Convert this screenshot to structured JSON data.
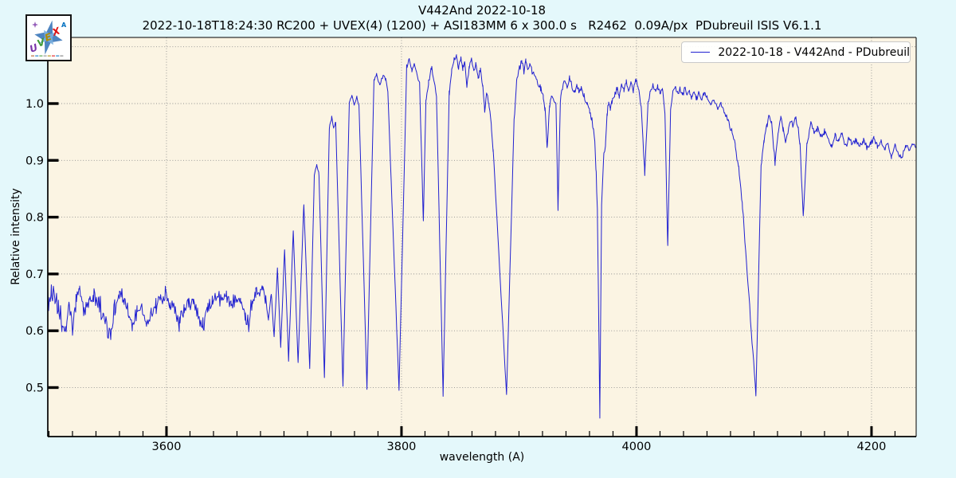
{
  "header": {
    "title": "V442And 2022-10-18",
    "subtitle": "2022-10-18T18:24:30 RC200 + UVEX(4) (1200) + ASI183MM 6 x 300.0 s   R2462  0.09A/px  PDubreuil ISIS V6.1.1"
  },
  "legend": {
    "label": "2022-10-18 - V442And - PDubreuil"
  },
  "logo": {
    "letters": [
      "U",
      "V",
      "E",
      "X"
    ],
    "accent_letter": "A",
    "colors": {
      "U": "#7a35a8",
      "V": "#3f9b35",
      "E": "#b08a00",
      "X": "#e01010",
      "A": "#0070c0",
      "star": "#2f6eb5",
      "star2": "#79aede"
    }
  },
  "axes": {
    "x_label": "wavelength (A)",
    "y_label": "Relative intensity",
    "x_ticks": [
      3600,
      3800,
      4000,
      4200
    ],
    "x_minor_step": 20,
    "y_ticks": [
      0.5,
      0.6,
      0.7,
      0.8,
      0.9,
      1.0
    ],
    "y_grid": [
      0.5,
      0.6,
      0.7,
      0.8,
      0.9,
      1.0,
      1.1
    ]
  },
  "colors": {
    "figure_bg": "#e4f8fb",
    "plot_bg": "#fbf4e3",
    "grid": "#8f8f8f",
    "frame": "#000000",
    "line": "#2020d0"
  },
  "chart_data": {
    "type": "line",
    "title": "V442And 2022-10-18",
    "xlabel": "wavelength (A)",
    "ylabel": "Relative intensity",
    "xlim": [
      3499,
      4238
    ],
    "ylim": [
      0.4137,
      1.1164
    ],
    "grid": true,
    "legend_position": "upper right",
    "series": [
      {
        "name": "2022-10-18 - V442And - PDubreuil",
        "color": "#2020d0",
        "seed": 1234,
        "noise_regions": [
          [
            3499,
            3560,
            0.024
          ],
          [
            3560,
            3686,
            0.018
          ],
          [
            3686,
            3800,
            0.004
          ],
          [
            3800,
            3880,
            0.006
          ],
          [
            3880,
            3896,
            0.003
          ],
          [
            3896,
            4238,
            0.007
          ]
        ],
        "anchors": [
          [
            3499,
            0.652
          ],
          [
            3502,
            0.668
          ],
          [
            3505,
            0.652
          ],
          [
            3508,
            0.638
          ],
          [
            3511,
            0.613
          ],
          [
            3514,
            0.6
          ],
          [
            3517,
            0.64
          ],
          [
            3520,
            0.603
          ],
          [
            3523,
            0.65
          ],
          [
            3526,
            0.668
          ],
          [
            3530,
            0.638
          ],
          [
            3534,
            0.65
          ],
          [
            3538,
            0.662
          ],
          [
            3542,
            0.653
          ],
          [
            3546,
            0.628
          ],
          [
            3550,
            0.6
          ],
          [
            3553,
            0.594
          ],
          [
            3556,
            0.642
          ],
          [
            3560,
            0.667
          ],
          [
            3564,
            0.652
          ],
          [
            3568,
            0.623
          ],
          [
            3571,
            0.61
          ],
          [
            3575,
            0.632
          ],
          [
            3579,
            0.643
          ],
          [
            3583,
            0.607
          ],
          [
            3587,
            0.633
          ],
          [
            3591,
            0.643
          ],
          [
            3595,
            0.656
          ],
          [
            3599,
            0.668
          ],
          [
            3603,
            0.648
          ],
          [
            3607,
            0.636
          ],
          [
            3611,
            0.613
          ],
          [
            3615,
            0.637
          ],
          [
            3619,
            0.646
          ],
          [
            3623,
            0.649
          ],
          [
            3627,
            0.633
          ],
          [
            3631,
            0.607
          ],
          [
            3635,
            0.641
          ],
          [
            3639,
            0.651
          ],
          [
            3643,
            0.663
          ],
          [
            3647,
            0.653
          ],
          [
            3651,
            0.658
          ],
          [
            3655,
            0.648
          ],
          [
            3659,
            0.665
          ],
          [
            3663,
            0.657
          ],
          [
            3667,
            0.629
          ],
          [
            3670,
            0.608
          ],
          [
            3673,
            0.656
          ],
          [
            3676,
            0.666
          ],
          [
            3679,
            0.673
          ],
          [
            3682,
            0.681
          ],
          [
            3684.5,
            0.657
          ],
          [
            3686.8,
            0.62
          ],
          [
            3689.2,
            0.665
          ],
          [
            3691.6,
            0.588
          ],
          [
            3694.4,
            0.71
          ],
          [
            3697.2,
            0.572
          ],
          [
            3700.5,
            0.745
          ],
          [
            3703.9,
            0.549
          ],
          [
            3707.9,
            0.777
          ],
          [
            3712.0,
            0.544
          ],
          [
            3716.9,
            0.825
          ],
          [
            3721.9,
            0.533
          ],
          [
            3725.8,
            0.872
          ],
          [
            3727.9,
            0.893
          ],
          [
            3729.8,
            0.874
          ],
          [
            3734.4,
            0.514
          ],
          [
            3738.6,
            0.956
          ],
          [
            3740.6,
            0.975
          ],
          [
            3742.3,
            0.958
          ],
          [
            3744.0,
            0.968
          ],
          [
            3750.2,
            0.502
          ],
          [
            3755.6,
            1.002
          ],
          [
            3757.8,
            1.015
          ],
          [
            3759.8,
            0.996
          ],
          [
            3762.0,
            1.012
          ],
          [
            3763.8,
            0.998
          ],
          [
            3770.6,
            0.5
          ],
          [
            3776.6,
            1.042
          ],
          [
            3778.8,
            1.05
          ],
          [
            3781.4,
            1.033
          ],
          [
            3784.6,
            1.052
          ],
          [
            3786.6,
            1.042
          ],
          [
            3788.4,
            1.02
          ],
          [
            3797.9,
            0.495
          ],
          [
            3804.4,
            1.065
          ],
          [
            3806.6,
            1.078
          ],
          [
            3808.8,
            1.06
          ],
          [
            3810.8,
            1.072
          ],
          [
            3813.0,
            1.055
          ],
          [
            3815.4,
            1.035
          ],
          [
            3818.6,
            0.792
          ],
          [
            3820.8,
            1.005
          ],
          [
            3823.0,
            1.035
          ],
          [
            3825.5,
            1.065
          ],
          [
            3827.6,
            1.042
          ],
          [
            3829.8,
            1.012
          ],
          [
            3835.4,
            0.486
          ],
          [
            3840.6,
            1.018
          ],
          [
            3842.6,
            1.055
          ],
          [
            3844.6,
            1.075
          ],
          [
            3846.8,
            1.085
          ],
          [
            3848.6,
            1.062
          ],
          [
            3850.6,
            1.08
          ],
          [
            3852.2,
            1.062
          ],
          [
            3853.8,
            1.073
          ],
          [
            3855.6,
            1.028
          ],
          [
            3857.6,
            1.062
          ],
          [
            3859.6,
            1.076
          ],
          [
            3861.6,
            1.056
          ],
          [
            3863.2,
            1.07
          ],
          [
            3865.2,
            1.045
          ],
          [
            3867.2,
            1.058
          ],
          [
            3869.2,
            1.032
          ],
          [
            3870.8,
            0.985
          ],
          [
            3872.4,
            1.02
          ],
          [
            3874.4,
            1.0
          ],
          [
            3876.4,
            0.962
          ],
          [
            3878.0,
            0.92
          ],
          [
            3889.4,
            0.486
          ],
          [
            3895.8,
            0.972
          ],
          [
            3898.0,
            1.04
          ],
          [
            3900.0,
            1.062
          ],
          [
            3902.4,
            1.072
          ],
          [
            3904.2,
            1.056
          ],
          [
            3905.8,
            1.076
          ],
          [
            3907.4,
            1.062
          ],
          [
            3909.0,
            1.072
          ],
          [
            3910.6,
            1.06
          ],
          [
            3912.4,
            1.052
          ],
          [
            3914.4,
            1.046
          ],
          [
            3916.4,
            1.034
          ],
          [
            3918.4,
            1.027
          ],
          [
            3920.6,
            1.012
          ],
          [
            3922.2,
            0.99
          ],
          [
            3923.9,
            0.923
          ],
          [
            3926.0,
            0.996
          ],
          [
            3927.6,
            1.012
          ],
          [
            3929.4,
            1.003
          ],
          [
            3931.4,
            1.0
          ],
          [
            3933.2,
            0.813
          ],
          [
            3935.2,
            1.006
          ],
          [
            3937.0,
            1.028
          ],
          [
            3939.0,
            1.04
          ],
          [
            3941.0,
            1.028
          ],
          [
            3943.0,
            1.044
          ],
          [
            3945.0,
            1.03
          ],
          [
            3947.0,
            1.018
          ],
          [
            3949.0,
            1.035
          ],
          [
            3951.0,
            1.02
          ],
          [
            3953.0,
            1.03
          ],
          [
            3955.4,
            1.012
          ],
          [
            3958.0,
            0.998
          ],
          [
            3960.2,
            0.985
          ],
          [
            3961.8,
            0.976
          ],
          [
            3963.2,
            0.956
          ],
          [
            3964.5,
            0.932
          ],
          [
            3965.7,
            0.875
          ],
          [
            3966.7,
            0.81
          ],
          [
            3967.6,
            0.66
          ],
          [
            3968.8,
            0.451
          ],
          [
            3970.3,
            0.82
          ],
          [
            3972.1,
            0.908
          ],
          [
            3973.7,
            0.93
          ],
          [
            3975.1,
            0.985
          ],
          [
            3976.3,
            1.0
          ],
          [
            3977.7,
            0.99
          ],
          [
            3979.1,
            1.006
          ],
          [
            3981.3,
            1.012
          ],
          [
            3983.3,
            1.027
          ],
          [
            3985.3,
            1.014
          ],
          [
            3987.3,
            1.032
          ],
          [
            3989.3,
            1.021
          ],
          [
            3991.3,
            1.04
          ],
          [
            3993.3,
            1.024
          ],
          [
            3995.3,
            1.037
          ],
          [
            3997.3,
            1.022
          ],
          [
            3999.3,
            1.042
          ],
          [
            4001.4,
            1.027
          ],
          [
            4004.0,
            0.992
          ],
          [
            4007.0,
            0.877
          ],
          [
            4009.8,
            1.0
          ],
          [
            4012.0,
            1.022
          ],
          [
            4014.0,
            1.034
          ],
          [
            4016.0,
            1.021
          ],
          [
            4018.0,
            1.032
          ],
          [
            4020.0,
            1.019
          ],
          [
            4022.0,
            1.03
          ],
          [
            4024.2,
            0.982
          ],
          [
            4026.6,
            0.746
          ],
          [
            4029.0,
            0.99
          ],
          [
            4031.0,
            1.02
          ],
          [
            4033.0,
            1.03
          ],
          [
            4035.0,
            1.017
          ],
          [
            4037.0,
            1.029
          ],
          [
            4039.0,
            1.014
          ],
          [
            4041.0,
            1.026
          ],
          [
            4043.0,
            1.012
          ],
          [
            4045.0,
            1.024
          ],
          [
            4047.0,
            1.01
          ],
          [
            4049.0,
            1.021
          ],
          [
            4051.0,
            1.007
          ],
          [
            4053.0,
            1.019
          ],
          [
            4055.0,
            1.005
          ],
          [
            4057.5,
            1.017
          ],
          [
            4060.0,
            1.013
          ],
          [
            4063.0,
            1.0
          ],
          [
            4066.0,
            1.007
          ],
          [
            4069.0,
            0.992
          ],
          [
            4072.0,
            0.998
          ],
          [
            4075.0,
            0.982
          ],
          [
            4078.0,
            0.968
          ],
          [
            4081.0,
            0.952
          ],
          [
            4084.0,
            0.925
          ],
          [
            4087.0,
            0.888
          ],
          [
            4090.0,
            0.825
          ],
          [
            4101.6,
            0.486
          ],
          [
            4106.0,
            0.89
          ],
          [
            4108.5,
            0.935
          ],
          [
            4111.0,
            0.962
          ],
          [
            4113.0,
            0.978
          ],
          [
            4115.0,
            0.965
          ],
          [
            4117.9,
            0.897
          ],
          [
            4120.5,
            0.952
          ],
          [
            4122.8,
            0.975
          ],
          [
            4124.8,
            0.957
          ],
          [
            4127.0,
            0.93
          ],
          [
            4129.0,
            0.952
          ],
          [
            4131.0,
            0.972
          ],
          [
            4133.0,
            0.96
          ],
          [
            4135.5,
            0.978
          ],
          [
            4137.5,
            0.954
          ],
          [
            4139.2,
            0.928
          ],
          [
            4141.9,
            0.8
          ],
          [
            4145.0,
            0.925
          ],
          [
            4148.4,
            0.968
          ],
          [
            4151.0,
            0.948
          ],
          [
            4154.0,
            0.956
          ],
          [
            4157.0,
            0.942
          ],
          [
            4160.0,
            0.95
          ],
          [
            4163.0,
            0.938
          ],
          [
            4166.0,
            0.922
          ],
          [
            4169.0,
            0.944
          ],
          [
            4172.0,
            0.936
          ],
          [
            4175.0,
            0.944
          ],
          [
            4178.0,
            0.924
          ],
          [
            4181.0,
            0.938
          ],
          [
            4184.0,
            0.928
          ],
          [
            4187.0,
            0.936
          ],
          [
            4190.0,
            0.925
          ],
          [
            4193.0,
            0.935
          ],
          [
            4196.0,
            0.922
          ],
          [
            4199.0,
            0.932
          ],
          [
            4202.0,
            0.938
          ],
          [
            4205.0,
            0.926
          ],
          [
            4208.0,
            0.934
          ],
          [
            4211.0,
            0.92
          ],
          [
            4214.0,
            0.93
          ],
          [
            4217.0,
            0.906
          ],
          [
            4220.0,
            0.926
          ],
          [
            4223.0,
            0.912
          ],
          [
            4226.0,
            0.905
          ],
          [
            4229.0,
            0.927
          ],
          [
            4232.0,
            0.92
          ],
          [
            4235.0,
            0.931
          ],
          [
            4238.0,
            0.922
          ]
        ]
      }
    ]
  }
}
